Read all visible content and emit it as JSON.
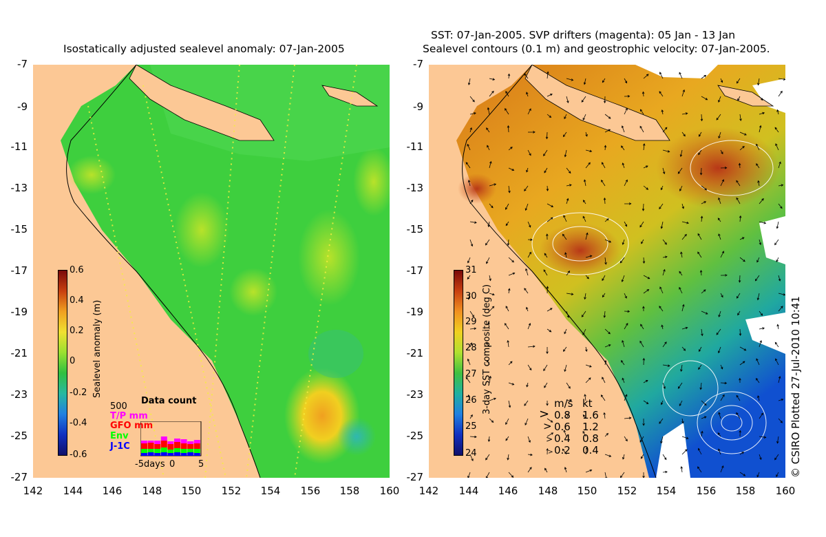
{
  "left_panel": {
    "title": "Isostatically adjusted sealevel anomaly: 07-Jan-2005",
    "colorbar_label": "Sealevel anomaly (m)",
    "colorbar_ticks": [
      "0.6",
      "0.4",
      "0.2",
      "0",
      "-0.2",
      "-0.4",
      "-0.6"
    ],
    "data_count": {
      "title": "Data count",
      "max_label": "500",
      "legend": [
        {
          "label": "T/P mm",
          "color": "#ff00ff"
        },
        {
          "label": "GFO mm",
          "color": "#ff0000"
        },
        {
          "label": "Env",
          "color": "#00ff00"
        },
        {
          "label": "J-1C",
          "color": "#0000ff"
        }
      ],
      "x_labels": [
        "-5days",
        "0",
        "5"
      ]
    }
  },
  "right_panel": {
    "title_line1": "SST: 07-Jan-2005. SVP drifters (magenta): 05 Jan - 13 Jan",
    "title_line2": "Sealevel contours (0.1 m) and geostrophic velocity: 07-Jan-2005.",
    "colorbar_label": "3-day SST composite (deg C)",
    "colorbar_ticks": [
      "31",
      "30",
      "29",
      "28",
      "27",
      "26",
      "25",
      "24"
    ],
    "velocity_legend": {
      "header_ms": "m/s",
      "header_kt": "kt",
      "rows": [
        {
          "ms": "0.8",
          "kt": "1.6"
        },
        {
          "ms": "0.6",
          "kt": "1.2"
        },
        {
          "ms": "0.4",
          "kt": "0.8"
        },
        {
          "ms": "0.2",
          "kt": "0.4"
        }
      ]
    },
    "credit": "© CSIRO Plotted 27-Jul-2010 10:41"
  },
  "axes": {
    "y_ticks": [
      "-7",
      "-9",
      "-11",
      "-13",
      "-15",
      "-17",
      "-19",
      "-21",
      "-23",
      "-25",
      "-27"
    ],
    "x_ticks": [
      "142",
      "144",
      "146",
      "148",
      "150",
      "152",
      "154",
      "156",
      "158",
      "160"
    ]
  },
  "colors": {
    "land": "#fcc895",
    "sla_mid": "#3ecf3e",
    "sst_warm": "#d98a1a",
    "sst_cool": "#1e8cd8"
  }
}
